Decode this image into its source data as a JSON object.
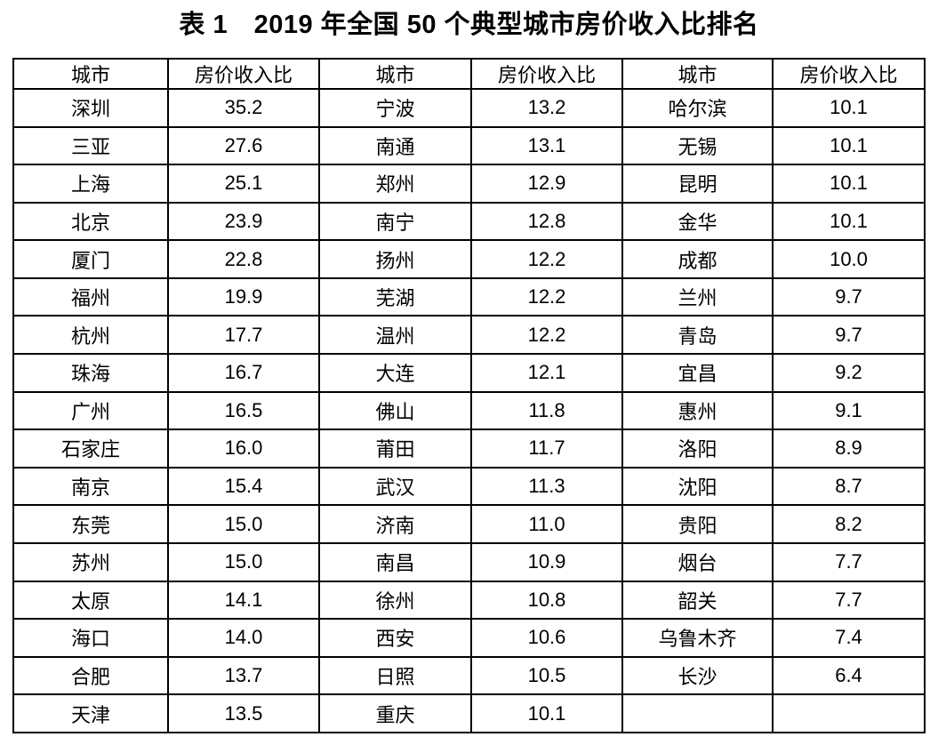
{
  "title": "表 1　2019 年全国 50 个典型城市房价收入比排名",
  "colors": {
    "background": "#ffffff",
    "text": "#000000",
    "border": "#000000"
  },
  "table": {
    "headers": [
      "城市",
      "房价收入比",
      "城市",
      "房价收入比",
      "城市",
      "房价收入比"
    ],
    "rows": [
      [
        "深圳",
        "35.2",
        "宁波",
        "13.2",
        "哈尔滨",
        "10.1"
      ],
      [
        "三亚",
        "27.6",
        "南通",
        "13.1",
        "无锡",
        "10.1"
      ],
      [
        "上海",
        "25.1",
        "郑州",
        "12.9",
        "昆明",
        "10.1"
      ],
      [
        "北京",
        "23.9",
        "南宁",
        "12.8",
        "金华",
        "10.1"
      ],
      [
        "厦门",
        "22.8",
        "扬州",
        "12.2",
        "成都",
        "10.0"
      ],
      [
        "福州",
        "19.9",
        "芜湖",
        "12.2",
        "兰州",
        "9.7"
      ],
      [
        "杭州",
        "17.7",
        "温州",
        "12.2",
        "青岛",
        "9.7"
      ],
      [
        "珠海",
        "16.7",
        "大连",
        "12.1",
        "宜昌",
        "9.2"
      ],
      [
        "广州",
        "16.5",
        "佛山",
        "11.8",
        "惠州",
        "9.1"
      ],
      [
        "石家庄",
        "16.0",
        "莆田",
        "11.7",
        "洛阳",
        "8.9"
      ],
      [
        "南京",
        "15.4",
        "武汉",
        "11.3",
        "沈阳",
        "8.7"
      ],
      [
        "东莞",
        "15.0",
        "济南",
        "11.0",
        "贵阳",
        "8.2"
      ],
      [
        "苏州",
        "15.0",
        "南昌",
        "10.9",
        "烟台",
        "7.7"
      ],
      [
        "太原",
        "14.1",
        "徐州",
        "10.8",
        "韶关",
        "7.7"
      ],
      [
        "海口",
        "14.0",
        "西安",
        "10.6",
        "乌鲁木齐",
        "7.4"
      ],
      [
        "合肥",
        "13.7",
        "日照",
        "10.5",
        "长沙",
        "6.4"
      ],
      [
        "天津",
        "13.5",
        "重庆",
        "10.1",
        "",
        ""
      ]
    ]
  },
  "chart_data": {
    "type": "table",
    "title": "表 1　2019 年全国 50 个典型城市房价收入比排名",
    "columns": [
      "城市",
      "房价收入比"
    ],
    "rows": [
      [
        "深圳",
        35.2
      ],
      [
        "三亚",
        27.6
      ],
      [
        "上海",
        25.1
      ],
      [
        "北京",
        23.9
      ],
      [
        "厦门",
        22.8
      ],
      [
        "福州",
        19.9
      ],
      [
        "杭州",
        17.7
      ],
      [
        "珠海",
        16.7
      ],
      [
        "广州",
        16.5
      ],
      [
        "石家庄",
        16.0
      ],
      [
        "南京",
        15.4
      ],
      [
        "东莞",
        15.0
      ],
      [
        "苏州",
        15.0
      ],
      [
        "太原",
        14.1
      ],
      [
        "海口",
        14.0
      ],
      [
        "合肥",
        13.7
      ],
      [
        "天津",
        13.5
      ],
      [
        "宁波",
        13.2
      ],
      [
        "南通",
        13.1
      ],
      [
        "郑州",
        12.9
      ],
      [
        "南宁",
        12.8
      ],
      [
        "扬州",
        12.2
      ],
      [
        "芜湖",
        12.2
      ],
      [
        "温州",
        12.2
      ],
      [
        "大连",
        12.1
      ],
      [
        "佛山",
        11.8
      ],
      [
        "莆田",
        11.7
      ],
      [
        "武汉",
        11.3
      ],
      [
        "济南",
        11.0
      ],
      [
        "南昌",
        10.9
      ],
      [
        "徐州",
        10.8
      ],
      [
        "西安",
        10.6
      ],
      [
        "日照",
        10.5
      ],
      [
        "重庆",
        10.1
      ],
      [
        "哈尔滨",
        10.1
      ],
      [
        "无锡",
        10.1
      ],
      [
        "昆明",
        10.1
      ],
      [
        "金华",
        10.1
      ],
      [
        "成都",
        10.0
      ],
      [
        "兰州",
        9.7
      ],
      [
        "青岛",
        9.7
      ],
      [
        "宜昌",
        9.2
      ],
      [
        "惠州",
        9.1
      ],
      [
        "洛阳",
        8.9
      ],
      [
        "沈阳",
        8.7
      ],
      [
        "贵阳",
        8.2
      ],
      [
        "烟台",
        7.7
      ],
      [
        "韶关",
        7.7
      ],
      [
        "乌鲁木齐",
        7.4
      ],
      [
        "长沙",
        6.4
      ]
    ],
    "layout": {
      "column_groups": 3,
      "rows_per_group": 17,
      "grid": true,
      "caption_position": "top-center"
    }
  }
}
